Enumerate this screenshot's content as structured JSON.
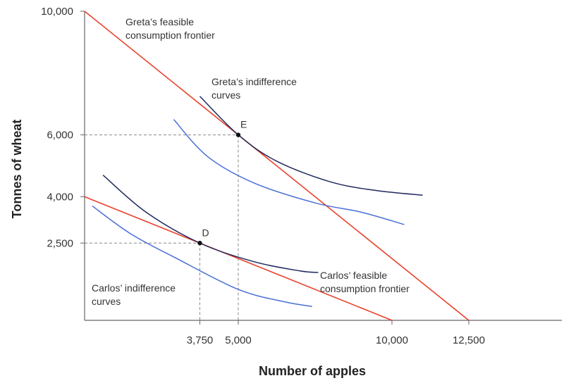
{
  "chart_data": {
    "type": "line",
    "title": "",
    "xlabel": "Number of apples",
    "ylabel": "Tonnes of wheat",
    "xlim": [
      0,
      15500
    ],
    "ylim": [
      0,
      10000
    ],
    "grid": false,
    "x_ticks": [
      {
        "value": 3750,
        "label": "3,750"
      },
      {
        "value": 5000,
        "label": "5,000"
      },
      {
        "value": 10000,
        "label": "10,000"
      },
      {
        "value": 12500,
        "label": "12,500"
      }
    ],
    "y_ticks": [
      {
        "value": 10000,
        "label": "10,000"
      },
      {
        "value": 6000,
        "label": "6,000"
      },
      {
        "value": 4000,
        "label": "4,000"
      },
      {
        "value": 2500,
        "label": "2,500"
      }
    ],
    "frontiers": [
      {
        "id": "greta",
        "label_lines": [
          "Greta’s feasible",
          "consumption frontier"
        ],
        "color": "#e8412c",
        "points": [
          [
            0,
            10000
          ],
          [
            12500,
            0
          ]
        ]
      },
      {
        "id": "carlos",
        "label_lines": [
          "Carlos’ feasible",
          "consumption frontier"
        ],
        "color": "#e8412c",
        "points": [
          [
            0,
            4000
          ],
          [
            10000,
            0
          ]
        ]
      }
    ],
    "indifference_curves": [
      {
        "group": "greta",
        "color": "#1f2a5c",
        "points": [
          [
            3750,
            7250
          ],
          [
            5000,
            6000
          ],
          [
            6250,
            5150
          ],
          [
            8000,
            4480
          ],
          [
            9500,
            4200
          ],
          [
            11000,
            4050
          ]
        ]
      },
      {
        "group": "greta",
        "color": "#4a6fd6",
        "points": [
          [
            2900,
            6500
          ],
          [
            4000,
            5300
          ],
          [
            5500,
            4450
          ],
          [
            7500,
            3800
          ],
          [
            9000,
            3500
          ],
          [
            10400,
            3100
          ]
        ]
      },
      {
        "group": "carlos",
        "color": "#1f2a5c",
        "points": [
          [
            600,
            4700
          ],
          [
            2000,
            3500
          ],
          [
            3750,
            2500
          ],
          [
            5500,
            1900
          ],
          [
            7000,
            1600
          ],
          [
            7600,
            1550
          ]
        ]
      },
      {
        "group": "carlos",
        "color": "#4a6fd6",
        "points": [
          [
            250,
            3700
          ],
          [
            1500,
            2800
          ],
          [
            3000,
            2000
          ],
          [
            5000,
            1000
          ],
          [
            6500,
            600
          ],
          [
            7400,
            450
          ]
        ]
      }
    ],
    "indifference_labels": {
      "greta": [
        "Greta’s indifference",
        "curves"
      ],
      "carlos": [
        "Carlos’ indifference",
        "curves"
      ]
    },
    "points": [
      {
        "label": "E",
        "x": 5000,
        "y": 6000
      },
      {
        "label": "D",
        "x": 3750,
        "y": 2500
      }
    ],
    "guide_color": "#888888",
    "axis_color": "#666666"
  }
}
